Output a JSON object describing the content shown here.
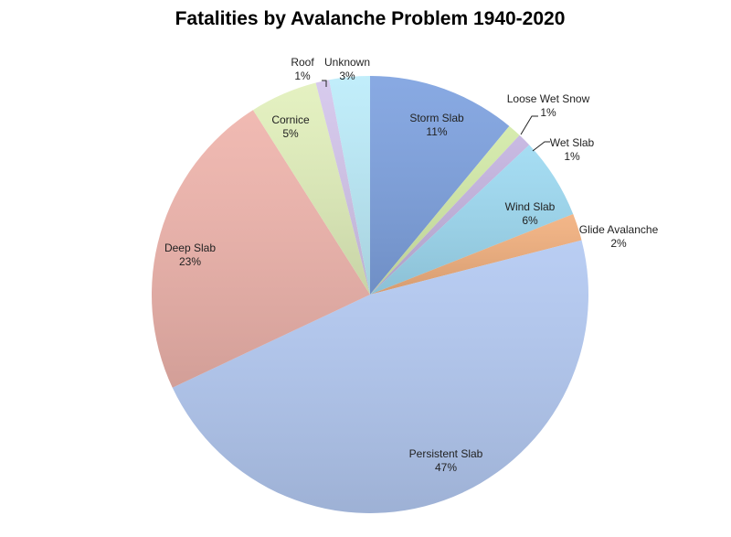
{
  "chart_data": {
    "type": "pie",
    "title": "Fatalities by Avalanche Problem 1940-2020",
    "start_angle": "12 o'clock, clockwise",
    "slices": [
      {
        "label": "Storm Slab",
        "value": 11,
        "display": "11%",
        "color": "#7ea2e0"
      },
      {
        "label": "Loose Wet Snow",
        "value": 1,
        "display": "1%",
        "color": "#d3eaa8"
      },
      {
        "label": "Wet Slab",
        "value": 1,
        "display": "1%",
        "color": "#c4b4e0"
      },
      {
        "label": "Wind Slab",
        "value": 6,
        "display": "6%",
        "color": "#9edaf2"
      },
      {
        "label": "Glide Avalanche",
        "value": 2,
        "display": "2%",
        "color": "#f2b07e"
      },
      {
        "label": "Persistent Slab",
        "value": 47,
        "display": "47%",
        "color": "#b3c9f2"
      },
      {
        "label": "Deep Slab",
        "value": 23,
        "display": "23%",
        "color": "#efb4ac"
      },
      {
        "label": "Cornice",
        "value": 5,
        "display": "5%",
        "color": "#e2f0bc"
      },
      {
        "label": "Roof",
        "value": 1,
        "display": "1%",
        "color": "#d4c6ec"
      },
      {
        "label": "Unknown",
        "value": 3,
        "display": "3%",
        "color": "#bcecfa"
      }
    ]
  }
}
